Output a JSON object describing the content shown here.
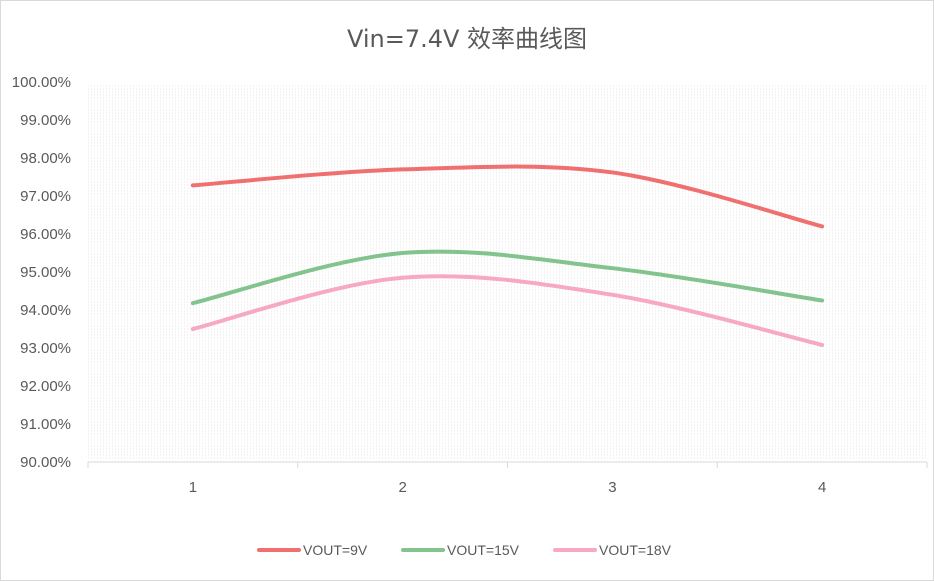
{
  "chart_data": {
    "type": "line",
    "title": "Vin=7.4V 效率曲线图",
    "xlabel": "",
    "ylabel": "",
    "categories": [
      "1",
      "2",
      "3",
      "4"
    ],
    "ylim": [
      0.9,
      1.0
    ],
    "ytick_step": 0.01,
    "ytick_labels": [
      "90.00%",
      "91.00%",
      "92.00%",
      "93.00%",
      "94.00%",
      "95.00%",
      "96.00%",
      "97.00%",
      "98.00%",
      "99.00%",
      "100.00%"
    ],
    "grid": "horizontal dotted",
    "legend_position": "bottom",
    "smooth": true,
    "series": [
      {
        "name": "VOUT=9V",
        "values": [
          0.9728,
          0.977,
          0.9762,
          0.962
        ],
        "color": "#f07070"
      },
      {
        "name": "VOUT=15V",
        "values": [
          0.9418,
          0.955,
          0.951,
          0.9425
        ],
        "color": "#82c38e"
      },
      {
        "name": "VOUT=18V",
        "values": [
          0.935,
          0.9485,
          0.944,
          0.9308
        ],
        "color": "#f7a8c4"
      }
    ]
  }
}
